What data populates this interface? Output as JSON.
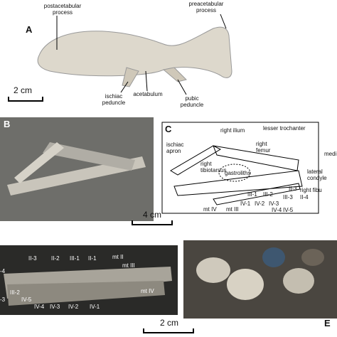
{
  "panels": {
    "a": {
      "letter": "A",
      "scale": "2 cm",
      "labels": [
        [
          "postacetabular",
          "process"
        ],
        [
          "preacetabular",
          "process"
        ],
        [
          "ischiac",
          "peduncle"
        ],
        [
          "acetabulum"
        ],
        [
          "pubic",
          "peduncle"
        ]
      ]
    },
    "b": {
      "letter": "B"
    },
    "c": {
      "letter": "C",
      "scale": "4 cm",
      "labels": [
        [
          "right ilium"
        ],
        [
          "lesser trochanter"
        ],
        [
          "ischiac",
          "apron"
        ],
        [
          "right",
          "femur"
        ],
        [
          "medi"
        ],
        [
          "lateral",
          "condyle"
        ],
        [
          "right",
          "tibiotarsus"
        ],
        [
          "gastroliths"
        ],
        [
          "right fibu"
        ],
        [
          "mt IV"
        ],
        [
          "mt III"
        ],
        [
          "III-1"
        ],
        [
          "III-2"
        ],
        [
          "III-3"
        ],
        [
          "II-3"
        ],
        [
          "II-4"
        ],
        [
          "IV-1"
        ],
        [
          "IV-2"
        ],
        [
          "IV-3"
        ],
        [
          "IV-4"
        ],
        [
          "IV-5"
        ]
      ]
    },
    "d": {
      "scale": "2 cm",
      "labels": [
        [
          "II-3"
        ],
        [
          "II-2"
        ],
        [
          "III-1"
        ],
        [
          "II-1"
        ],
        [
          "mt II"
        ],
        [
          "mt III"
        ],
        [
          "mt IV"
        ],
        [
          "-4"
        ],
        [
          "-3"
        ],
        [
          "III-2"
        ],
        [
          "IV-5"
        ],
        [
          "IV-4"
        ],
        [
          "IV-3"
        ],
        [
          "IV-2"
        ],
        [
          "IV-1"
        ]
      ]
    },
    "e": {
      "letter": "E"
    }
  }
}
